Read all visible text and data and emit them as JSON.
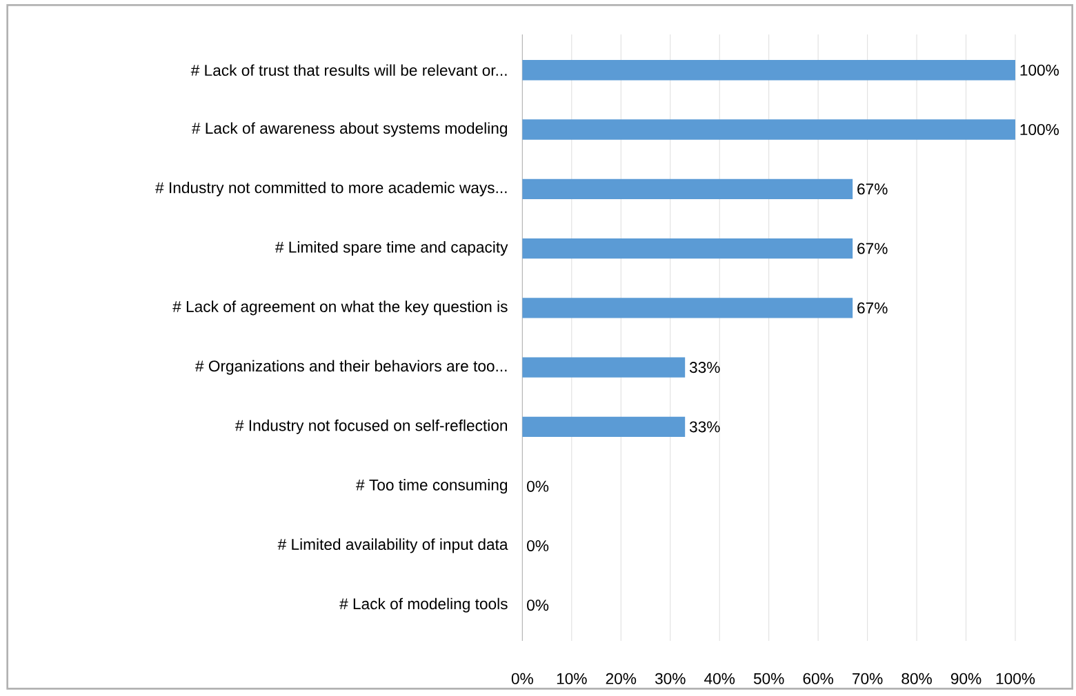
{
  "chart_data": {
    "type": "bar",
    "orientation": "horizontal",
    "categories": [
      "# Lack of trust that results will be relevant or...",
      "# Lack of awareness about systems modeling",
      "# Industry not committed to more academic ways...",
      "# Limited spare time and capacity",
      "# Lack of agreement on what the key question is",
      "# Organizations and their behaviors are too...",
      "# Industry not focused on self-reflection",
      "# Too time consuming",
      "# Limited availability of input data",
      "# Lack of modeling tools"
    ],
    "values": [
      100,
      100,
      67,
      67,
      67,
      33,
      33,
      0,
      0,
      0
    ],
    "value_labels": [
      "100%",
      "100%",
      "67%",
      "67%",
      "67%",
      "33%",
      "33%",
      "0%",
      "0%",
      "0%"
    ],
    "color": "#5b9bd5",
    "xlim": [
      0,
      100
    ],
    "xticks": [
      {
        "value": 0,
        "label": "0%"
      },
      {
        "value": 10,
        "label": "10%"
      },
      {
        "value": 20,
        "label": "20%"
      },
      {
        "value": 30,
        "label": "30%"
      },
      {
        "value": 40,
        "label": "40%"
      },
      {
        "value": 50,
        "label": "50%"
      },
      {
        "value": 60,
        "label": "60%"
      },
      {
        "value": 70,
        "label": "70%"
      },
      {
        "value": 80,
        "label": "80%"
      },
      {
        "value": 90,
        "label": "90%"
      },
      {
        "value": 100,
        "label": "100%"
      }
    ],
    "grid": "x"
  }
}
